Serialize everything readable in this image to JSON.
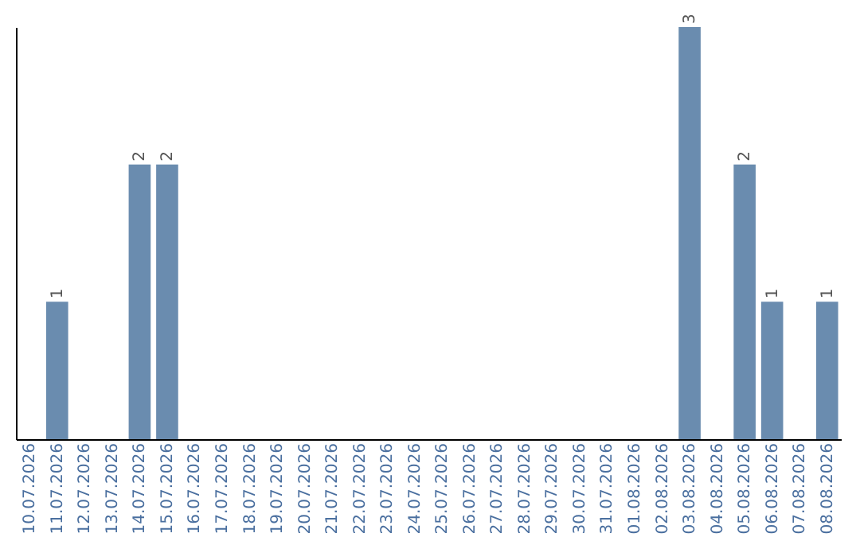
{
  "chart_data": {
    "type": "bar",
    "categories": [
      "10.07.2026",
      "11.07.2026",
      "12.07.2026",
      "13.07.2026",
      "14.07.2026",
      "15.07.2026",
      "16.07.2026",
      "17.07.2026",
      "18.07.2026",
      "19.07.2026",
      "20.07.2026",
      "21.07.2026",
      "22.07.2026",
      "23.07.2026",
      "24.07.2026",
      "25.07.2026",
      "26.07.2026",
      "27.07.2026",
      "28.07.2026",
      "29.07.2026",
      "30.07.2026",
      "31.07.2026",
      "01.08.2026",
      "02.08.2026",
      "03.08.2026",
      "04.08.2026",
      "05.08.2026",
      "06.08.2026",
      "07.08.2026",
      "08.08.2026"
    ],
    "values": [
      0,
      1,
      0,
      0,
      2,
      2,
      0,
      0,
      0,
      0,
      0,
      0,
      0,
      0,
      0,
      0,
      0,
      0,
      0,
      0,
      0,
      0,
      0,
      0,
      3,
      0,
      2,
      1,
      0,
      1
    ],
    "value_labels": [
      null,
      "1",
      null,
      null,
      "2",
      "2",
      null,
      null,
      null,
      null,
      null,
      null,
      null,
      null,
      null,
      null,
      null,
      null,
      null,
      null,
      null,
      null,
      null,
      null,
      "3",
      null,
      "2",
      "1",
      null,
      "1"
    ],
    "color": "#6a8caf",
    "grid": false,
    "tick_labels": "x"
  }
}
